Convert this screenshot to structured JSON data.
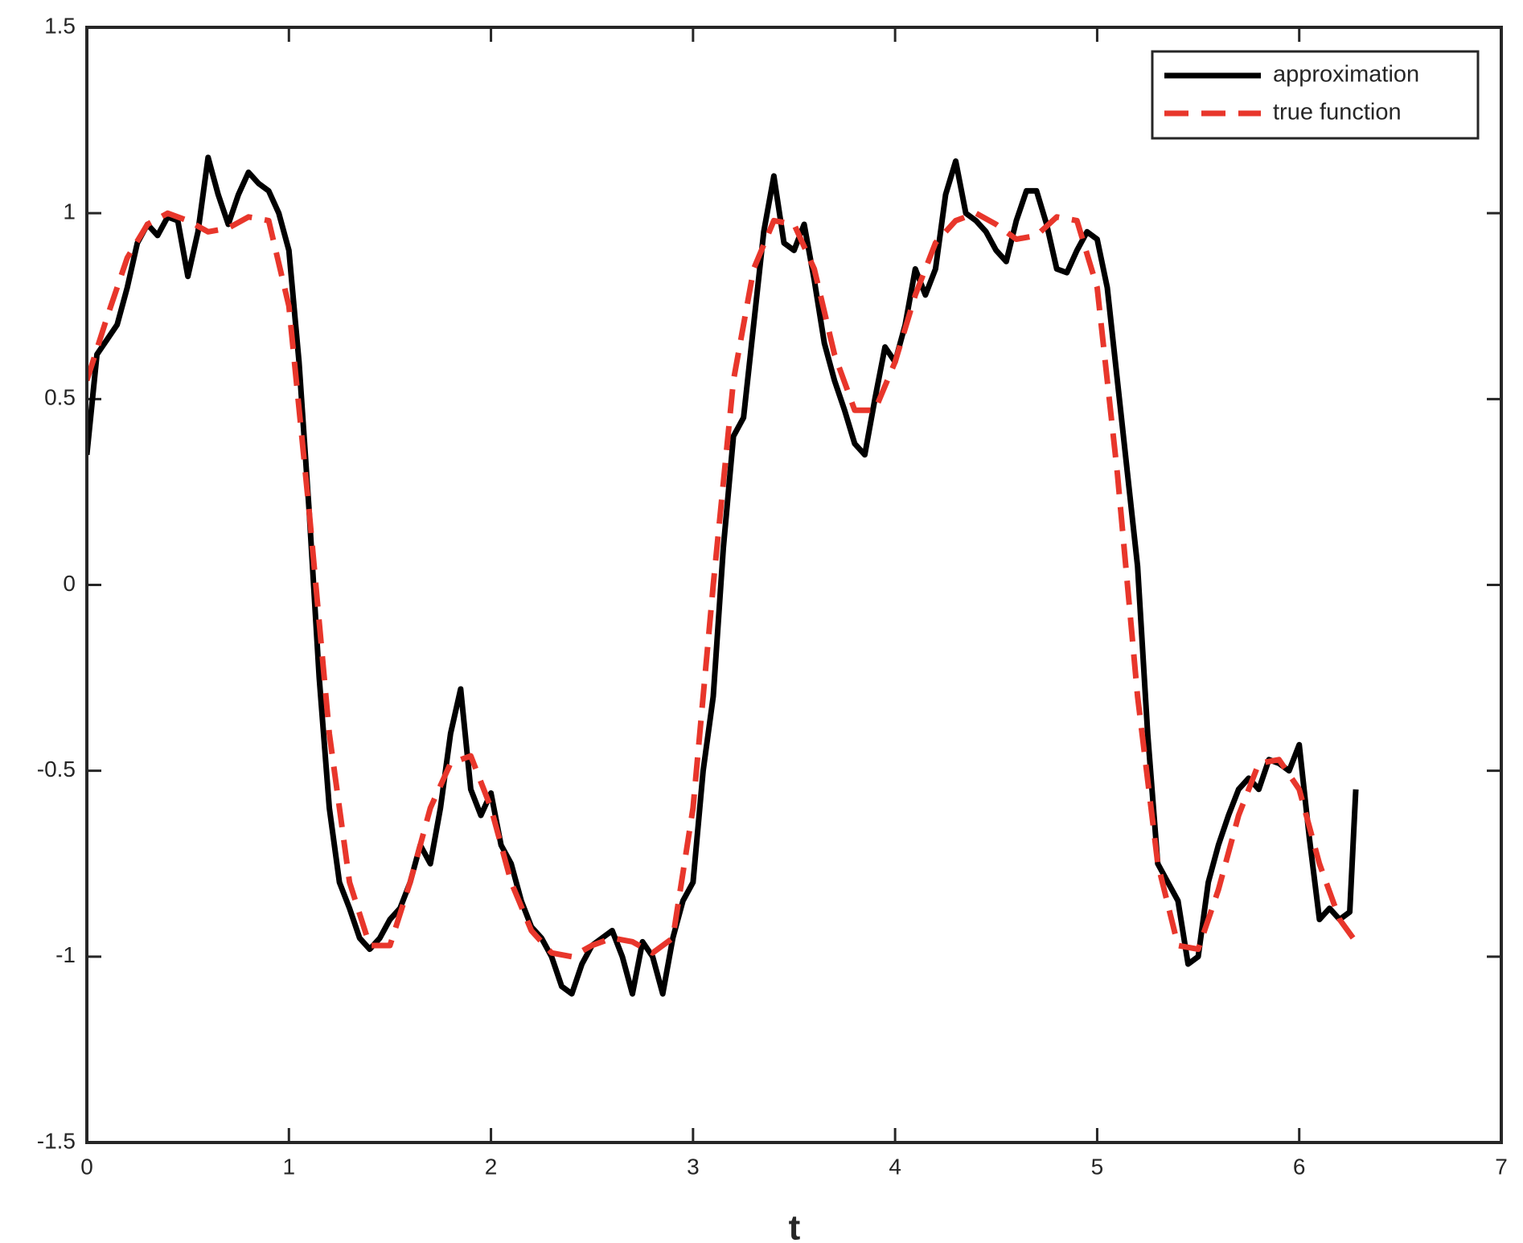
{
  "chart_data": {
    "type": "line",
    "xlabel": "t",
    "xlim": [
      0,
      7
    ],
    "xticks": [
      0,
      1,
      2,
      3,
      4,
      5,
      6,
      7
    ],
    "ylim": [
      -1.5,
      1.5
    ],
    "yticks": [
      -1.5,
      -1,
      -0.5,
      0,
      0.5,
      1,
      1.5
    ],
    "legend_position": "upper right",
    "series": [
      {
        "name": "approximation",
        "color": "#000000",
        "dash": "solid",
        "x": [
          0,
          0.05,
          0.1,
          0.15,
          0.2,
          0.25,
          0.3,
          0.35,
          0.4,
          0.45,
          0.5,
          0.55,
          0.6,
          0.65,
          0.7,
          0.75,
          0.8,
          0.85,
          0.9,
          0.95,
          1.0,
          1.05,
          1.1,
          1.15,
          1.2,
          1.25,
          1.3,
          1.35,
          1.4,
          1.45,
          1.5,
          1.55,
          1.6,
          1.65,
          1.7,
          1.75,
          1.8,
          1.85,
          1.9,
          1.95,
          2.0,
          2.05,
          2.1,
          2.15,
          2.2,
          2.25,
          2.3,
          2.35,
          2.4,
          2.45,
          2.5,
          2.55,
          2.6,
          2.65,
          2.7,
          2.75,
          2.8,
          2.85,
          2.9,
          2.95,
          3.0,
          3.05,
          3.1,
          3.15,
          3.2,
          3.25,
          3.3,
          3.35,
          3.4,
          3.45,
          3.5,
          3.55,
          3.6,
          3.65,
          3.7,
          3.75,
          3.8,
          3.85,
          3.9,
          3.95,
          4.0,
          4.05,
          4.1,
          4.15,
          4.2,
          4.25,
          4.3,
          4.35,
          4.4,
          4.45,
          4.5,
          4.55,
          4.6,
          4.65,
          4.7,
          4.75,
          4.8,
          4.85,
          4.9,
          4.95,
          5.0,
          5.05,
          5.1,
          5.15,
          5.2,
          5.25,
          5.3,
          5.35,
          5.4,
          5.45,
          5.5,
          5.55,
          5.6,
          5.65,
          5.7,
          5.75,
          5.8,
          5.85,
          5.9,
          5.95,
          6.0,
          6.05,
          6.1,
          6.15,
          6.2,
          6.25,
          6.28
        ],
        "values": [
          0.35,
          0.62,
          0.66,
          0.7,
          0.8,
          0.92,
          0.97,
          0.94,
          0.99,
          0.98,
          0.83,
          0.95,
          1.15,
          1.05,
          0.97,
          1.05,
          1.11,
          1.08,
          1.06,
          1.0,
          0.9,
          0.6,
          0.2,
          -0.25,
          -0.6,
          -0.8,
          -0.87,
          -0.95,
          -0.98,
          -0.95,
          -0.9,
          -0.87,
          -0.8,
          -0.7,
          -0.75,
          -0.6,
          -0.4,
          -0.28,
          -0.55,
          -0.62,
          -0.56,
          -0.7,
          -0.75,
          -0.85,
          -0.92,
          -0.95,
          -1.0,
          -1.08,
          -1.1,
          -1.02,
          -0.97,
          -0.95,
          -0.93,
          -1.0,
          -1.1,
          -0.96,
          -1.0,
          -1.1,
          -0.95,
          -0.85,
          -0.8,
          -0.5,
          -0.3,
          0.1,
          0.4,
          0.45,
          0.7,
          0.95,
          1.1,
          0.92,
          0.9,
          0.97,
          0.82,
          0.65,
          0.55,
          0.47,
          0.38,
          0.35,
          0.5,
          0.64,
          0.6,
          0.7,
          0.85,
          0.78,
          0.85,
          1.05,
          1.14,
          1.0,
          0.98,
          0.95,
          0.9,
          0.87,
          0.98,
          1.06,
          1.06,
          0.97,
          0.85,
          0.84,
          0.9,
          0.95,
          0.93,
          0.8,
          0.55,
          0.3,
          0.05,
          -0.4,
          -0.75,
          -0.8,
          -0.85,
          -1.02,
          -1.0,
          -0.8,
          -0.7,
          -0.62,
          -0.55,
          -0.52,
          -0.55,
          -0.47,
          -0.48,
          -0.5,
          -0.43,
          -0.68,
          -0.9,
          -0.87,
          -0.9,
          -0.88,
          -0.55
        ]
      },
      {
        "name": "true function",
        "color": "#e8362b",
        "dash": "dashed",
        "x": [
          0,
          0.1,
          0.2,
          0.3,
          0.4,
          0.5,
          0.6,
          0.7,
          0.8,
          0.9,
          1.0,
          1.1,
          1.2,
          1.3,
          1.4,
          1.5,
          1.6,
          1.7,
          1.8,
          1.9,
          2.0,
          2.1,
          2.2,
          2.3,
          2.4,
          2.5,
          2.6,
          2.7,
          2.8,
          2.9,
          3.0,
          3.1,
          3.2,
          3.3,
          3.4,
          3.5,
          3.6,
          3.7,
          3.8,
          3.9,
          4.0,
          4.1,
          4.2,
          4.3,
          4.4,
          4.5,
          4.6,
          4.7,
          4.8,
          4.9,
          5.0,
          5.1,
          5.2,
          5.3,
          5.4,
          5.5,
          5.6,
          5.7,
          5.8,
          5.9,
          6.0,
          6.1,
          6.2,
          6.28
        ],
        "values": [
          0.55,
          0.72,
          0.88,
          0.97,
          1.0,
          0.98,
          0.95,
          0.96,
          0.99,
          0.98,
          0.75,
          0.2,
          -0.4,
          -0.8,
          -0.97,
          -0.97,
          -0.8,
          -0.6,
          -0.48,
          -0.46,
          -0.6,
          -0.8,
          -0.93,
          -0.99,
          -1.0,
          -0.97,
          -0.95,
          -0.96,
          -0.99,
          -0.95,
          -0.6,
          0.0,
          0.55,
          0.85,
          0.98,
          0.97,
          0.85,
          0.62,
          0.47,
          0.47,
          0.6,
          0.78,
          0.92,
          0.98,
          1.0,
          0.97,
          0.93,
          0.94,
          0.99,
          0.98,
          0.8,
          0.3,
          -0.3,
          -0.75,
          -0.97,
          -0.98,
          -0.82,
          -0.62,
          -0.48,
          -0.47,
          -0.55,
          -0.75,
          -0.9,
          -0.96
        ]
      }
    ]
  }
}
